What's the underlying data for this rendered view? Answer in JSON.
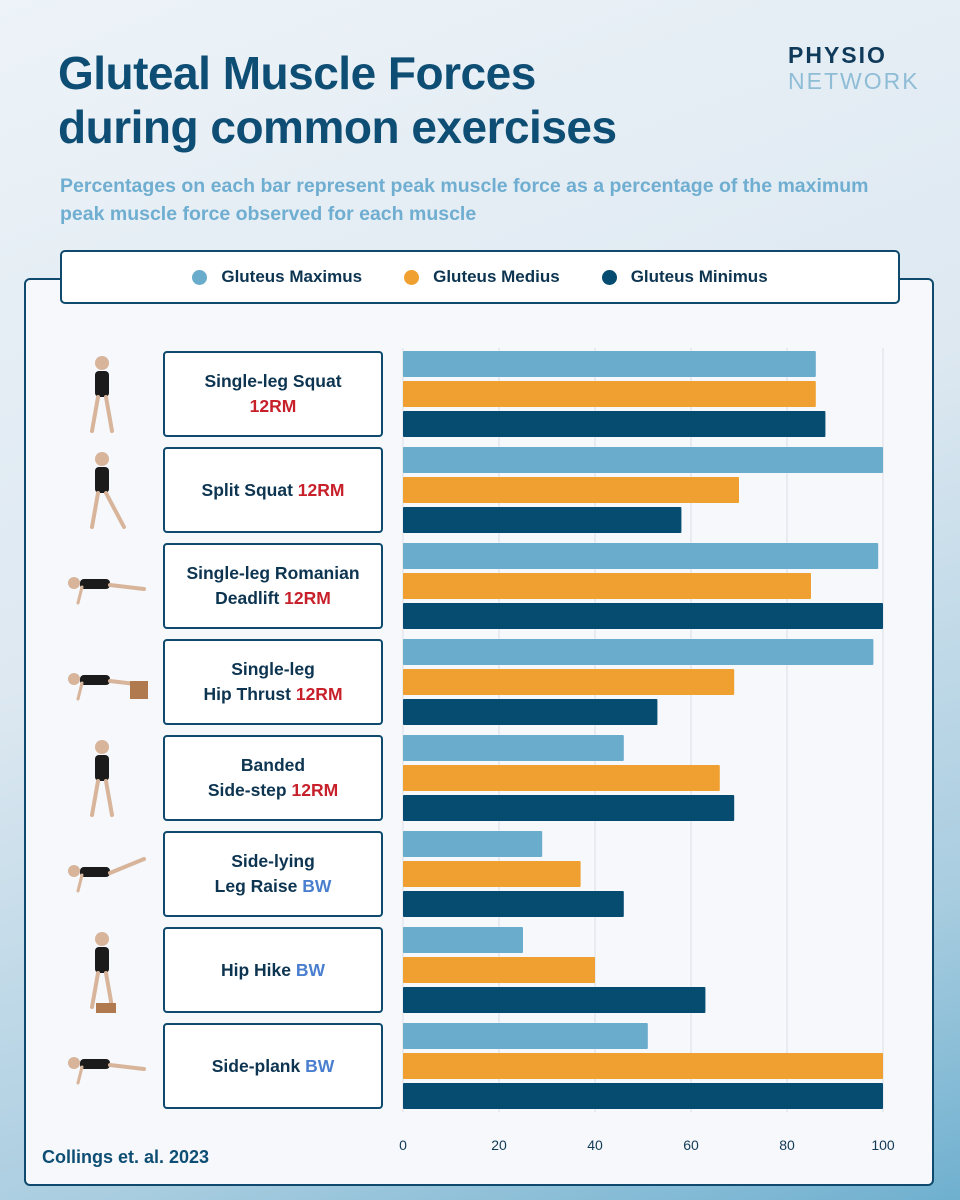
{
  "title_line1": "Gluteal Muscle Forces",
  "title_line2": "during common exercises",
  "subtitle": "Percentages on each bar represent peak muscle force as a percentage of the maximum peak muscle force observed for each muscle",
  "logo": {
    "line1": "PHYSIO",
    "line2": "NETWORK"
  },
  "citation": "Collings et. al. 2023",
  "colors": {
    "maximus": "#6aaccb",
    "medius": "#f0a030",
    "minimus": "#064b70",
    "load_rm": "#c8202a",
    "load_bw": "#4a7fcf"
  },
  "legend": [
    "Gluteus Maximus",
    "Gluteus Medius",
    "Gluteus Minimus"
  ],
  "exercises": [
    {
      "line1": "Single-leg Squat",
      "line2": "",
      "load": "12RM",
      "load_type": "rm",
      "load_newline": true
    },
    {
      "line1": "Split Squat",
      "line2": "",
      "load": "12RM",
      "load_type": "rm",
      "load_newline": false
    },
    {
      "line1": "Single-leg Romanian",
      "line2": "Deadlift",
      "load": "12RM",
      "load_type": "rm",
      "load_newline": false
    },
    {
      "line1": "Single-leg",
      "line2": "Hip Thrust",
      "load": "12RM",
      "load_type": "rm",
      "load_newline": false
    },
    {
      "line1": "Banded",
      "line2": "Side-step",
      "load": "12RM",
      "load_type": "rm",
      "load_newline": false
    },
    {
      "line1": "Side-lying",
      "line2": "Leg Raise",
      "load": "BW",
      "load_type": "bw",
      "load_newline": false
    },
    {
      "line1": "Hip Hike",
      "line2": "",
      "load": "BW",
      "load_type": "bw",
      "load_newline": false
    },
    {
      "line1": "Side-plank",
      "line2": "",
      "load": "BW",
      "load_type": "bw",
      "load_newline": false
    }
  ],
  "chart_data": {
    "type": "bar",
    "orientation": "horizontal",
    "categories": [
      "Single-leg Squat 12RM",
      "Split Squat 12RM",
      "Single-leg Romanian Deadlift 12RM",
      "Single-leg Hip Thrust 12RM",
      "Banded Side-step 12RM",
      "Side-lying Leg Raise BW",
      "Hip Hike BW",
      "Side-plank BW"
    ],
    "series": [
      {
        "name": "Gluteus Maximus",
        "color": "#6aaccb",
        "values": [
          86,
          100,
          99,
          98,
          46,
          29,
          25,
          51
        ]
      },
      {
        "name": "Gluteus Medius",
        "color": "#f0a030",
        "values": [
          86,
          70,
          85,
          69,
          66,
          37,
          40,
          100
        ]
      },
      {
        "name": "Gluteus Minimus",
        "color": "#064b70",
        "values": [
          88,
          58,
          100,
          53,
          69,
          46,
          63,
          100
        ]
      }
    ],
    "xlim": [
      0,
      100
    ],
    "xticks": [
      0,
      20,
      40,
      60,
      80,
      100
    ],
    "grid": true,
    "legend_position": "top"
  }
}
